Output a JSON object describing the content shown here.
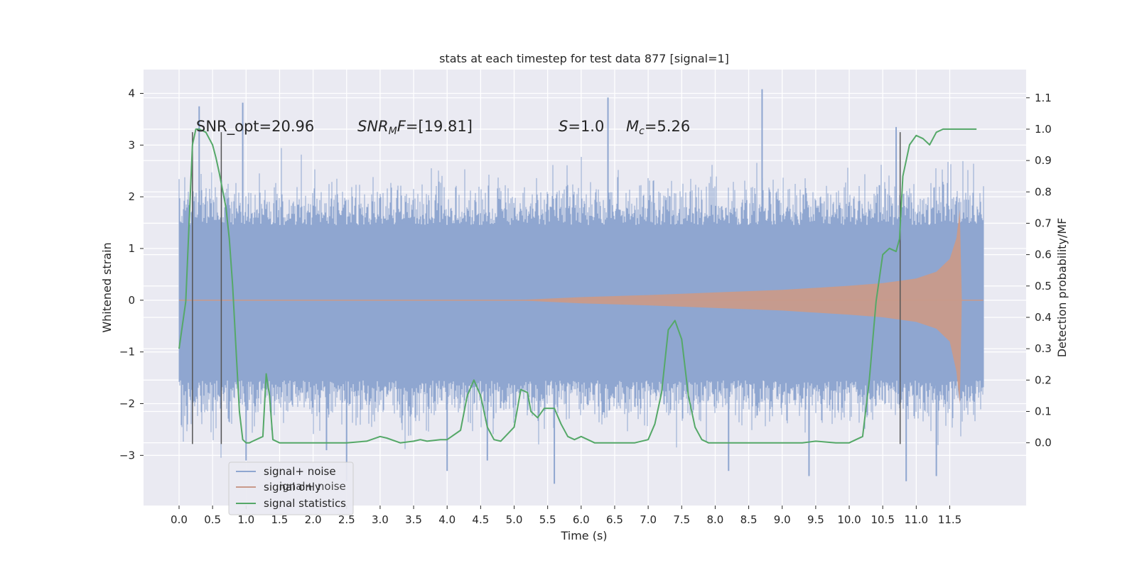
{
  "chart_data": {
    "type": "line",
    "title": "stats at each timestep for test data 877 [signal=1]",
    "xlabel": "Time (s)",
    "ylabel": "Whitened strain",
    "y2label": "Detection probability/MF",
    "xlim": [
      -0.53,
      12.64
    ],
    "ylim": [
      -3.97,
      4.46
    ],
    "y2lim": [
      -0.2,
      1.19
    ],
    "x_ticks": [
      0.0,
      0.5,
      1.0,
      1.5,
      2.0,
      2.5,
      3.0,
      3.5,
      4.0,
      4.5,
      5.0,
      5.5,
      6.0,
      6.5,
      7.0,
      7.5,
      8.0,
      8.5,
      9.0,
      9.5,
      10.0,
      10.5,
      11.0,
      11.5
    ],
    "x_tick_labels": [
      "0.0",
      "0.5",
      "1.0",
      "1.5",
      "2.0",
      "2.5",
      "3.0",
      "3.5",
      "4.0",
      "4.5",
      "5.0",
      "5.5",
      "6.0",
      "6.5",
      "7.0",
      "7.5",
      "8.0",
      "8.5",
      "9.0",
      "9.5",
      "10.0",
      "10.5",
      "11.0",
      "11.5"
    ],
    "y_ticks": [
      -3,
      -2,
      -1,
      0,
      1,
      2,
      3,
      4
    ],
    "y_tick_labels": [
      "−3",
      "−2",
      "−1",
      "0",
      "1",
      "2",
      "3",
      "4"
    ],
    "y2_ticks": [
      0.0,
      0.1,
      0.2,
      0.3,
      0.4,
      0.5,
      0.6,
      0.7,
      0.8,
      0.9,
      1.0,
      1.1
    ],
    "y2_tick_labels": [
      "0.0",
      "0.1",
      "0.2",
      "0.3",
      "0.4",
      "0.5",
      "0.6",
      "0.7",
      "0.8",
      "0.9",
      "1.0",
      "1.1"
    ],
    "grid": true,
    "legend_position": "lower-left",
    "colors": {
      "background": "#eaeaf2",
      "grid": "#ffffff",
      "noise": "#8fa6d0",
      "signal": "#c99a8a",
      "stats": "#55a868",
      "markers": "#555555"
    },
    "series": [
      {
        "name": "signal+ noise",
        "kind": "noisy strain",
        "x_range": [
          0.0,
          12.0
        ],
        "core_band": [
          -1.55,
          1.45
        ],
        "typical_peaks": [
          -2.3,
          2.2
        ],
        "extreme_peaks": [
          [
            0.3,
            3.75
          ],
          [
            0.95,
            3.82
          ],
          [
            1.0,
            -3.1
          ],
          [
            2.2,
            -2.9
          ],
          [
            2.5,
            -3.5
          ],
          [
            4.0,
            -3.3
          ],
          [
            4.6,
            -3.1
          ],
          [
            5.6,
            -3.55
          ],
          [
            6.4,
            3.92
          ],
          [
            8.2,
            -3.3
          ],
          [
            8.7,
            4.08
          ],
          [
            9.4,
            -3.4
          ],
          [
            10.7,
            3.35
          ],
          [
            10.85,
            -3.5
          ],
          [
            11.3,
            -3.4
          ]
        ]
      },
      {
        "name": "signal only",
        "kind": "chirp",
        "x_range": [
          0.0,
          12.0
        ],
        "envelope": [
          [
            0.0,
            0.0
          ],
          [
            5.0,
            0.0
          ],
          [
            6.0,
            0.06
          ],
          [
            7.0,
            0.1
          ],
          [
            8.0,
            0.15
          ],
          [
            9.0,
            0.2
          ],
          [
            10.0,
            0.28
          ],
          [
            10.5,
            0.33
          ],
          [
            11.0,
            0.42
          ],
          [
            11.3,
            0.55
          ],
          [
            11.5,
            0.8
          ],
          [
            11.6,
            1.2
          ],
          [
            11.65,
            1.75
          ],
          [
            11.68,
            0.0
          ],
          [
            12.0,
            0.0
          ]
        ]
      },
      {
        "name": "signal statistics",
        "axis": "right",
        "x": [
          0.0,
          0.1,
          0.15,
          0.2,
          0.25,
          0.3,
          0.4,
          0.5,
          0.55,
          0.6,
          0.7,
          0.75,
          0.8,
          0.85,
          0.9,
          0.95,
          1.0,
          1.05,
          1.1,
          1.25,
          1.3,
          1.35,
          1.4,
          1.5,
          1.7,
          2.0,
          2.5,
          2.8,
          3.0,
          3.1,
          3.3,
          3.5,
          3.6,
          3.7,
          3.9,
          4.0,
          4.2,
          4.3,
          4.4,
          4.5,
          4.6,
          4.7,
          4.8,
          5.0,
          5.1,
          5.2,
          5.25,
          5.35,
          5.45,
          5.6,
          5.7,
          5.8,
          5.9,
          6.0,
          6.1,
          6.2,
          6.4,
          6.8,
          7.0,
          7.1,
          7.2,
          7.3,
          7.4,
          7.5,
          7.6,
          7.7,
          7.8,
          7.9,
          8.0,
          8.5,
          9.0,
          9.3,
          9.5,
          9.8,
          10.0,
          10.1,
          10.2,
          10.3,
          10.4,
          10.5,
          10.6,
          10.7,
          10.75,
          10.8,
          10.9,
          11.0,
          11.1,
          11.2,
          11.3,
          11.4,
          11.5,
          11.7,
          11.9
        ],
        "y": [
          0.3,
          0.45,
          0.7,
          0.95,
          1.0,
          1.0,
          0.99,
          0.95,
          0.91,
          0.86,
          0.75,
          0.65,
          0.5,
          0.3,
          0.1,
          0.01,
          0.0,
          0.0,
          0.005,
          0.02,
          0.22,
          0.15,
          0.01,
          0.0,
          0.0,
          0.0,
          0.0,
          0.005,
          0.02,
          0.015,
          0.0,
          0.005,
          0.01,
          0.005,
          0.01,
          0.01,
          0.04,
          0.15,
          0.2,
          0.15,
          0.05,
          0.01,
          0.005,
          0.05,
          0.17,
          0.16,
          0.1,
          0.08,
          0.11,
          0.11,
          0.06,
          0.02,
          0.01,
          0.02,
          0.01,
          0.0,
          0.0,
          0.0,
          0.01,
          0.06,
          0.16,
          0.36,
          0.39,
          0.33,
          0.15,
          0.05,
          0.01,
          0.0,
          0.0,
          0.0,
          0.0,
          0.0,
          0.005,
          0.0,
          0.0,
          0.01,
          0.02,
          0.2,
          0.45,
          0.6,
          0.62,
          0.61,
          0.65,
          0.85,
          0.95,
          0.98,
          0.97,
          0.95,
          0.99,
          1.0,
          1.0,
          1.0,
          1.0
        ]
      }
    ],
    "event_markers": [
      {
        "x": 0.2,
        "y": [
          -2.78,
          3.25
        ]
      },
      {
        "x": 0.63,
        "y": [
          -2.78,
          3.25
        ]
      },
      {
        "x": 10.76,
        "y": [
          -2.78,
          3.25
        ]
      }
    ],
    "annotations": [
      {
        "text": "SNR_opt=20.96",
        "x": 0.2,
        "y": 3.33
      },
      {
        "text": "SNR_MF=[19.81]",
        "x": 2.6,
        "y": 3.33
      },
      {
        "text": "S=1.0",
        "x": 5.6,
        "y": 3.33
      },
      {
        "text": "M_c=5.26",
        "x": 6.6,
        "y": 3.33
      }
    ]
  },
  "annotation_parts": {
    "snr_opt": "SNR_opt=20.96",
    "snr_mf_base": "SNR",
    "snr_mf_sub": "M",
    "snr_mf_tail": "F",
    "snr_mf_value": "=[19.81]",
    "s_var": "S",
    "s_value": "=1.0",
    "mc_var": "M",
    "mc_sub": "c",
    "mc_value": "=5.26"
  },
  "legend": {
    "items": [
      {
        "label": "signal+ noise"
      },
      {
        "label": "signal only"
      },
      {
        "label": "signal statistics"
      }
    ],
    "ghost_text": "ignal+ noise"
  }
}
